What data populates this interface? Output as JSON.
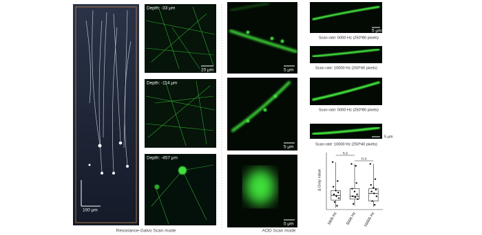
{
  "panels": {
    "volume": {
      "scale_bar": "100 μm"
    },
    "depth": [
      {
        "label": "Depth: -33 μm",
        "scale_bar": "20 μm"
      },
      {
        "label": "Depth: -114 μm"
      },
      {
        "label": "Depth: -457 μm"
      }
    ],
    "aod": [
      {
        "scale_bar": "5 μm"
      },
      {
        "scale_bar": "5 μm"
      },
      {
        "scale_bar": "5 μm"
      }
    ],
    "scan": [
      {
        "scale_bar": "5 μm",
        "caption": "Scan rate: 5000 Hz (250*80 pixels)"
      },
      {
        "caption": "Scan rate: 10000 Hz (250*40 pixels)"
      },
      {
        "caption": "Scan rate: 5000 Hz (250*80 pixels)"
      },
      {
        "scale_bar": "5 μm",
        "caption": "Scan rate: 10000 Hz (250*40 pixels)"
      }
    ]
  },
  "footer": [
    "Resonance-Galvo Scan mode",
    "AOD Scan mode"
  ],
  "chart_data": {
    "type": "box",
    "ylabel": "Δ Gray value",
    "categories": [
      "1600 Hz",
      "5000 Hz",
      "10000 Hz"
    ],
    "ylim": [
      0,
      300
    ],
    "annotations": [
      "n.s",
      "n.s"
    ],
    "boxes": [
      {
        "min": 10,
        "q1": 50,
        "median": 75,
        "q3": 100,
        "max": 250
      },
      {
        "min": 20,
        "q1": 55,
        "median": 70,
        "q3": 110,
        "max": 240
      },
      {
        "min": 15,
        "q1": 45,
        "median": 85,
        "q3": 110,
        "max": 240
      }
    ],
    "points": [
      [
        250,
        20,
        40,
        60,
        70,
        80,
        90,
        100,
        120,
        150
      ],
      [
        240,
        230,
        30,
        55,
        65,
        70,
        80,
        95,
        110,
        140
      ],
      [
        240,
        25,
        45,
        70,
        85,
        95,
        105,
        115,
        130,
        160
      ]
    ]
  }
}
